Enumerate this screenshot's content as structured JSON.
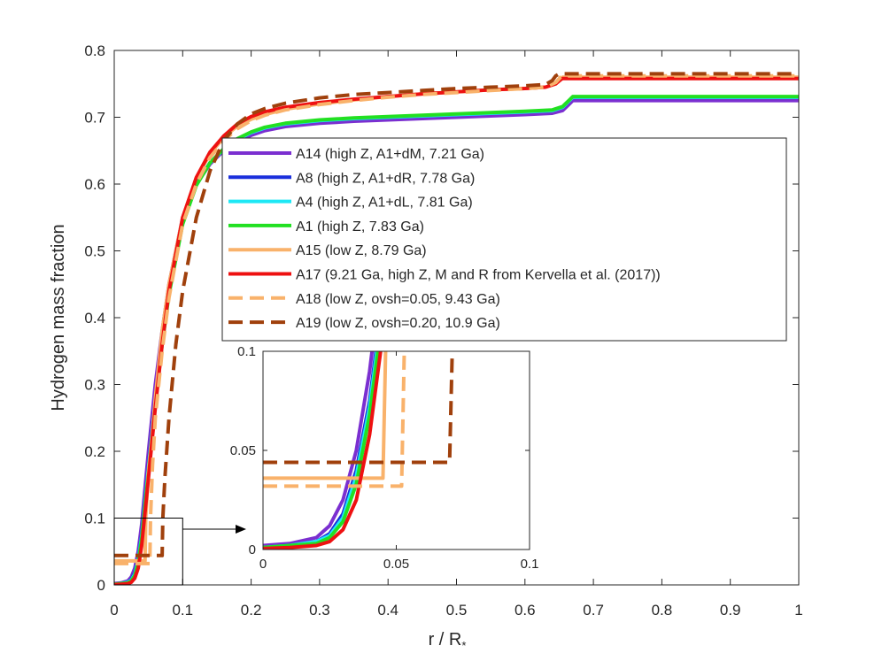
{
  "chart_data": {
    "type": "line",
    "title": "",
    "xlabel": "r / R",
    "xlabel_subscript": "*",
    "ylabel": "Hydrogen mass fraction",
    "xlim": [
      0,
      1
    ],
    "ylim": [
      0,
      0.8
    ],
    "xticks": [
      "0",
      "0.1",
      "0.2",
      "0.3",
      "0.4",
      "0.5",
      "0.6",
      "0.7",
      "0.8",
      "0.9",
      "1"
    ],
    "yticks": [
      "0",
      "0.1",
      "0.2",
      "0.3",
      "0.4",
      "0.5",
      "0.6",
      "0.7",
      "0.8"
    ],
    "grid": false,
    "legend_position": "upper-center",
    "series": [
      {
        "name": "A14 (high Z, A1+dM, 7.21 Ga)",
        "color": "#7b2fd0",
        "dash": "solid",
        "x": [
          0,
          0.01,
          0.02,
          0.025,
          0.03,
          0.035,
          0.04,
          0.05,
          0.06,
          0.07,
          0.08,
          0.1,
          0.12,
          0.14,
          0.16,
          0.18,
          0.2,
          0.22,
          0.25,
          0.3,
          0.35,
          0.4,
          0.45,
          0.5,
          0.55,
          0.6,
          0.64,
          0.655,
          0.665,
          0.67,
          0.7,
          0.8,
          0.9,
          1.0
        ],
        "y": [
          0.002,
          0.003,
          0.006,
          0.012,
          0.025,
          0.05,
          0.09,
          0.2,
          0.3,
          0.38,
          0.45,
          0.55,
          0.6,
          0.63,
          0.65,
          0.664,
          0.673,
          0.68,
          0.686,
          0.691,
          0.694,
          0.696,
          0.698,
          0.7,
          0.702,
          0.704,
          0.706,
          0.71,
          0.72,
          0.725,
          0.725,
          0.725,
          0.725,
          0.725
        ]
      },
      {
        "name": "A8 (high Z, A1+dR, 7.78 Ga)",
        "color": "#1a2fdc",
        "dash": "solid",
        "x": [
          0,
          0.01,
          0.02,
          0.025,
          0.03,
          0.035,
          0.04,
          0.05,
          0.06,
          0.07,
          0.08,
          0.1,
          0.12,
          0.14,
          0.16,
          0.18,
          0.2,
          0.22,
          0.25,
          0.3,
          0.35,
          0.4,
          0.45,
          0.5,
          0.55,
          0.6,
          0.64,
          0.655,
          0.665,
          0.67,
          0.7,
          0.8,
          0.9,
          1.0
        ],
        "y": [
          0.001,
          0.002,
          0.004,
          0.008,
          0.018,
          0.04,
          0.075,
          0.18,
          0.28,
          0.37,
          0.44,
          0.545,
          0.6,
          0.632,
          0.652,
          0.667,
          0.677,
          0.684,
          0.69,
          0.695,
          0.698,
          0.7,
          0.702,
          0.704,
          0.706,
          0.708,
          0.71,
          0.715,
          0.725,
          0.73,
          0.73,
          0.73,
          0.73,
          0.73
        ]
      },
      {
        "name": "A4 (high Z, A1+dL, 7.81 Ga)",
        "color": "#1ee8f5",
        "dash": "solid",
        "x": [
          0,
          0.01,
          0.02,
          0.025,
          0.03,
          0.035,
          0.04,
          0.05,
          0.06,
          0.07,
          0.08,
          0.1,
          0.12,
          0.14,
          0.16,
          0.18,
          0.2,
          0.22,
          0.25,
          0.3,
          0.35,
          0.4,
          0.45,
          0.5,
          0.55,
          0.6,
          0.64,
          0.655,
          0.665,
          0.67,
          0.7,
          0.8,
          0.9,
          1.0
        ],
        "y": [
          0.001,
          0.002,
          0.004,
          0.007,
          0.016,
          0.037,
          0.072,
          0.175,
          0.275,
          0.365,
          0.44,
          0.545,
          0.6,
          0.632,
          0.652,
          0.667,
          0.677,
          0.684,
          0.69,
          0.695,
          0.698,
          0.7,
          0.702,
          0.704,
          0.706,
          0.708,
          0.71,
          0.715,
          0.725,
          0.73,
          0.73,
          0.73,
          0.73,
          0.73
        ]
      },
      {
        "name": "A1 (high Z, 7.83 Ga)",
        "color": "#22e022",
        "dash": "solid",
        "x": [
          0,
          0.01,
          0.02,
          0.025,
          0.03,
          0.035,
          0.04,
          0.05,
          0.06,
          0.07,
          0.08,
          0.1,
          0.12,
          0.14,
          0.16,
          0.18,
          0.2,
          0.22,
          0.25,
          0.3,
          0.35,
          0.4,
          0.45,
          0.5,
          0.55,
          0.6,
          0.64,
          0.655,
          0.665,
          0.67,
          0.7,
          0.8,
          0.9,
          1.0
        ],
        "y": [
          0.001,
          0.002,
          0.003,
          0.006,
          0.014,
          0.033,
          0.068,
          0.17,
          0.27,
          0.36,
          0.435,
          0.54,
          0.598,
          0.632,
          0.653,
          0.668,
          0.678,
          0.685,
          0.691,
          0.696,
          0.699,
          0.701,
          0.703,
          0.705,
          0.707,
          0.709,
          0.711,
          0.716,
          0.726,
          0.731,
          0.731,
          0.731,
          0.731,
          0.731
        ]
      },
      {
        "name": "A15 (low Z, 8.79 Ga)",
        "color": "#f9b26b",
        "dash": "solid",
        "x": [
          0,
          0.02,
          0.04,
          0.045,
          0.046,
          0.05,
          0.055,
          0.06,
          0.07,
          0.08,
          0.1,
          0.12,
          0.14,
          0.16,
          0.18,
          0.2,
          0.22,
          0.25,
          0.3,
          0.35,
          0.4,
          0.45,
          0.5,
          0.55,
          0.6,
          0.63,
          0.645,
          0.652,
          0.655,
          0.7,
          0.8,
          0.9,
          1.0
        ],
        "y": [
          0.036,
          0.036,
          0.036,
          0.036,
          0.1,
          0.17,
          0.22,
          0.28,
          0.38,
          0.45,
          0.55,
          0.61,
          0.645,
          0.67,
          0.687,
          0.697,
          0.704,
          0.712,
          0.72,
          0.726,
          0.731,
          0.735,
          0.738,
          0.741,
          0.743,
          0.745,
          0.75,
          0.757,
          0.76,
          0.76,
          0.76,
          0.76,
          0.76
        ]
      },
      {
        "name": "A17 (9.21 Ga, high Z, M and R from Kervella et al. (2017))",
        "color": "#ee1111",
        "dash": "solid",
        "x": [
          0,
          0.01,
          0.02,
          0.025,
          0.03,
          0.035,
          0.04,
          0.05,
          0.06,
          0.07,
          0.08,
          0.1,
          0.12,
          0.14,
          0.16,
          0.18,
          0.2,
          0.22,
          0.25,
          0.3,
          0.35,
          0.4,
          0.45,
          0.5,
          0.55,
          0.6,
          0.63,
          0.645,
          0.652,
          0.655,
          0.7,
          0.8,
          0.9,
          1.0
        ],
        "y": [
          0.0005,
          0.001,
          0.002,
          0.004,
          0.01,
          0.025,
          0.058,
          0.16,
          0.265,
          0.36,
          0.44,
          0.55,
          0.61,
          0.648,
          0.672,
          0.69,
          0.701,
          0.708,
          0.715,
          0.722,
          0.727,
          0.731,
          0.735,
          0.738,
          0.741,
          0.743,
          0.745,
          0.75,
          0.756,
          0.758,
          0.758,
          0.758,
          0.758,
          0.758
        ]
      },
      {
        "name": "A18 (low Z, ovsh=0.05, 9.43 Ga)",
        "color": "#f9b26b",
        "dash": "dashed",
        "x": [
          0,
          0.02,
          0.04,
          0.05,
          0.052,
          0.053,
          0.056,
          0.06,
          0.07,
          0.08,
          0.1,
          0.12,
          0.14,
          0.16,
          0.18,
          0.2,
          0.22,
          0.25,
          0.3,
          0.35,
          0.4,
          0.45,
          0.5,
          0.55,
          0.6,
          0.63,
          0.645,
          0.652,
          0.655,
          0.7,
          0.8,
          0.9,
          1.0
        ],
        "y": [
          0.032,
          0.032,
          0.032,
          0.032,
          0.032,
          0.1,
          0.18,
          0.25,
          0.35,
          0.43,
          0.54,
          0.6,
          0.64,
          0.665,
          0.683,
          0.695,
          0.703,
          0.711,
          0.719,
          0.725,
          0.73,
          0.734,
          0.737,
          0.74,
          0.743,
          0.745,
          0.752,
          0.76,
          0.762,
          0.762,
          0.762,
          0.762,
          0.762
        ]
      },
      {
        "name": "A19 (low Z, ovsh=0.20, 10.9 Ga)",
        "color": "#a0400c",
        "dash": "dashed",
        "x": [
          0,
          0.02,
          0.04,
          0.06,
          0.07,
          0.071,
          0.074,
          0.08,
          0.09,
          0.1,
          0.12,
          0.14,
          0.16,
          0.18,
          0.2,
          0.22,
          0.25,
          0.3,
          0.35,
          0.4,
          0.45,
          0.5,
          0.55,
          0.6,
          0.63,
          0.64,
          0.645,
          0.65,
          0.7,
          0.8,
          0.9,
          1.0
        ],
        "y": [
          0.044,
          0.044,
          0.044,
          0.044,
          0.044,
          0.1,
          0.16,
          0.25,
          0.36,
          0.44,
          0.55,
          0.62,
          0.665,
          0.69,
          0.705,
          0.713,
          0.721,
          0.729,
          0.734,
          0.737,
          0.74,
          0.743,
          0.745,
          0.747,
          0.749,
          0.755,
          0.762,
          0.765,
          0.765,
          0.765,
          0.765,
          0.765
        ]
      }
    ],
    "inset": {
      "xlim": [
        0,
        0.1
      ],
      "ylim": [
        0,
        0.1
      ],
      "xticks": [
        "0",
        "0.05",
        "0.1"
      ],
      "yticks": [
        "0",
        "0.05",
        "0.1"
      ],
      "zoom_region": {
        "x": [
          0,
          0.1
        ],
        "y": [
          0,
          0.1
        ]
      }
    }
  }
}
